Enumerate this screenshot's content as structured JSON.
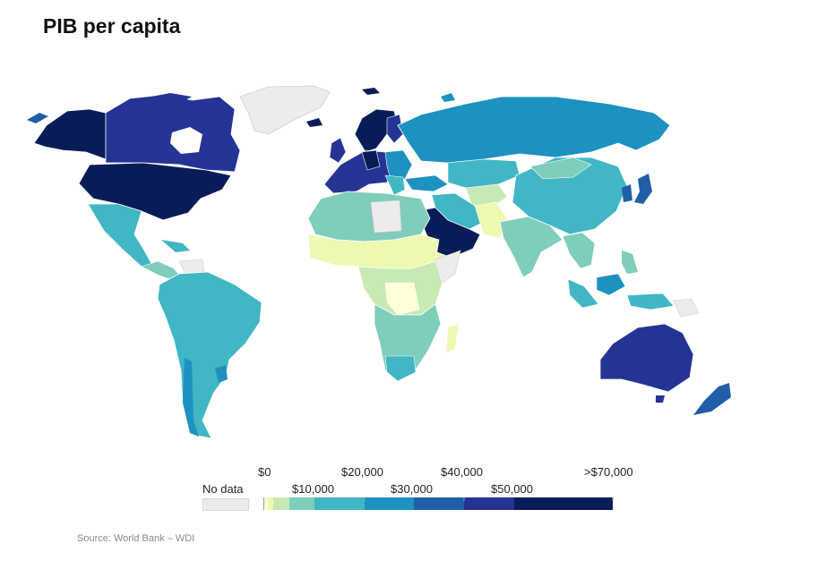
{
  "title": "PIB per capita",
  "source": "Source: World Bank – WDI",
  "legend": {
    "no_data_label": "No data",
    "no_data_color": "#ececec",
    "top_labels": [
      "$0",
      "$20,000",
      "$40,000",
      ">$70,000"
    ],
    "bottom_labels": [
      "$10,000",
      "$30,000",
      "$50,000"
    ],
    "bins": [
      "#ffffd9",
      "#edf8b1",
      "#c7e9b4",
      "#7fcdbb",
      "#41b6c4",
      "#1d91c0",
      "#225ea8",
      "#253494",
      "#081d58"
    ]
  }
}
